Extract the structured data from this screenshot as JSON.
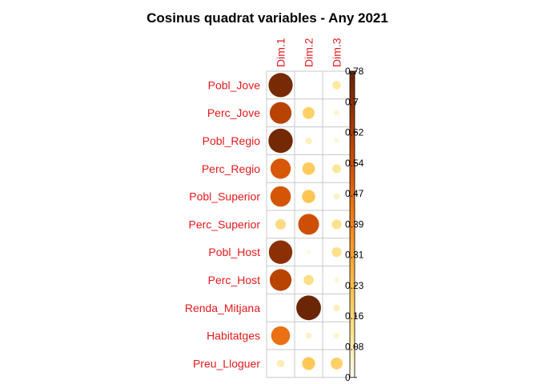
{
  "chart_data": {
    "type": "heatmap",
    "title": "Cosinus quadrat variables - Any 2021",
    "columns": [
      "Dim.1",
      "Dim.2",
      "Dim.3"
    ],
    "rows": [
      "Pobl_Jove",
      "Perc_Jove",
      "Pobl_Regio",
      "Perc_Regio",
      "Pobl_Superior",
      "Perc_Superior",
      "Pobl_Host",
      "Perc_Host",
      "Renda_Mitjana",
      "Habitatges",
      "Preu_Lloguer"
    ],
    "values": [
      [
        0.74,
        0.0,
        0.09
      ],
      [
        0.6,
        0.18,
        0.04
      ],
      [
        0.75,
        0.06,
        0.03
      ],
      [
        0.52,
        0.2,
        0.1
      ],
      [
        0.53,
        0.22,
        0.05
      ],
      [
        0.14,
        0.55,
        0.12
      ],
      [
        0.7,
        0.02,
        0.12
      ],
      [
        0.6,
        0.13,
        0.03
      ],
      [
        0.0,
        0.77,
        0.06
      ],
      [
        0.45,
        0.05,
        0.04
      ],
      [
        0.07,
        0.21,
        0.18
      ]
    ],
    "colorbar": {
      "min": 0,
      "max": 0.78,
      "ticks": [
        "0",
        "0.08",
        "0.16",
        "0.23",
        "0.31",
        "0.39",
        "0.47",
        "0.54",
        "0.62",
        "0.7",
        "0.78"
      ]
    },
    "colors": [
      "#fffdf0",
      "#fee391",
      "#fec44f",
      "#fe9929",
      "#ec7014",
      "#cc4c02",
      "#993404",
      "#662506"
    ]
  }
}
